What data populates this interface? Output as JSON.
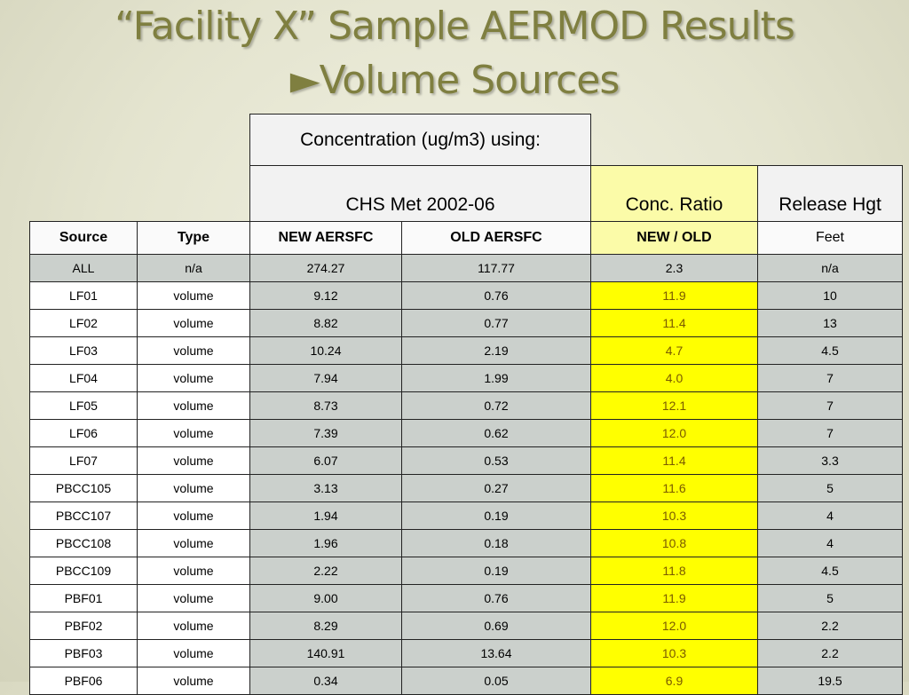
{
  "title": {
    "line1": "“Facility X” Sample AERMOD Results",
    "line2": "►Volume Sources"
  },
  "header": {
    "concentration_label": "Concentration (ug/m3) using:",
    "met_label": "CHS Met 2002-06",
    "ratio_label": "Conc. Ratio",
    "release_label": "Release Hgt"
  },
  "columns": [
    "Source",
    "Type",
    "NEW AERSFC",
    "OLD AERSFC",
    "NEW / OLD",
    "Feet"
  ],
  "rows": [
    [
      "ALL",
      "n/a",
      "274.27",
      "117.77",
      "2.3",
      "n/a"
    ],
    [
      "LF01",
      "volume",
      "9.12",
      "0.76",
      "11.9",
      "10"
    ],
    [
      "LF02",
      "volume",
      "8.82",
      "0.77",
      "11.4",
      "13"
    ],
    [
      "LF03",
      "volume",
      "10.24",
      "2.19",
      "4.7",
      "4.5"
    ],
    [
      "LF04",
      "volume",
      "7.94",
      "1.99",
      "4.0",
      "7"
    ],
    [
      "LF05",
      "volume",
      "8.73",
      "0.72",
      "12.1",
      "7"
    ],
    [
      "LF06",
      "volume",
      "7.39",
      "0.62",
      "12.0",
      "7"
    ],
    [
      "LF07",
      "volume",
      "6.07",
      "0.53",
      "11.4",
      "3.3"
    ],
    [
      "PBCC105",
      "volume",
      "3.13",
      "0.27",
      "11.6",
      "5"
    ],
    [
      "PBCC107",
      "volume",
      "1.94",
      "0.19",
      "10.3",
      "4"
    ],
    [
      "PBCC108",
      "volume",
      "1.96",
      "0.18",
      "10.8",
      "4"
    ],
    [
      "PBCC109",
      "volume",
      "2.22",
      "0.19",
      "11.8",
      "4.5"
    ],
    [
      "PBF01",
      "volume",
      "9.00",
      "0.76",
      "11.9",
      "5"
    ],
    [
      "PBF02",
      "volume",
      "8.29",
      "0.69",
      "12.0",
      "2.2"
    ],
    [
      "PBF03",
      "volume",
      "140.91",
      "13.64",
      "10.3",
      "2.2"
    ],
    [
      "PBF06",
      "volume",
      "0.34",
      "0.05",
      "6.9",
      "19.5"
    ]
  ]
}
